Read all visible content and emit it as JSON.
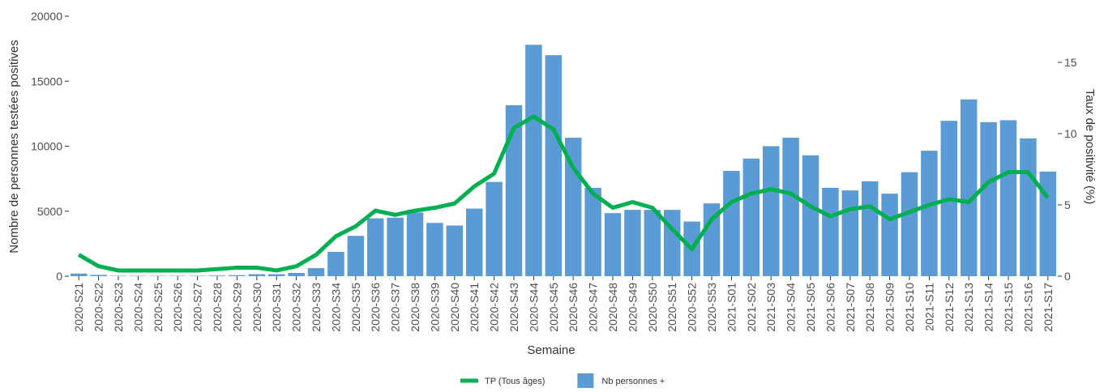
{
  "chart_data": {
    "type": "bar",
    "xlabel": "Semaine",
    "ylabel": "Nombre de personnes testées positives",
    "y2label": "Taux de positivité (%)",
    "categories": [
      "2020-S21",
      "2020-S22",
      "2020-S23",
      "2020-S24",
      "2020-S25",
      "2020-S26",
      "2020-S27",
      "2020-S28",
      "2020-S29",
      "2020-S30",
      "2020-S31",
      "2020-S32",
      "2020-S33",
      "2020-S34",
      "2020-S35",
      "2020-S36",
      "2020-S37",
      "2020-S38",
      "2020-S39",
      "2020-S40",
      "2020-S41",
      "2020-S42",
      "2020-S43",
      "2020-S44",
      "2020-S45",
      "2020-S46",
      "2020-S47",
      "2020-S48",
      "2020-S49",
      "2020-S50",
      "2020-S51",
      "2020-S52",
      "2020-S53",
      "2021-S01",
      "2021-S02",
      "2021-S03",
      "2021-S04",
      "2021-S05",
      "2021-S06",
      "2021-S07",
      "2021-S08",
      "2021-S09",
      "2021-S10",
      "2021-S11",
      "2021-S12",
      "2021-S13",
      "2021-S14",
      "2021-S15",
      "2021-S16",
      "2021-S17"
    ],
    "series": [
      {
        "name": "TP (Tous âges)",
        "type": "line",
        "axis": "y2",
        "color": "#00b050",
        "values": [
          1.5,
          0.7,
          0.4,
          0.4,
          0.4,
          0.4,
          0.4,
          0.5,
          0.6,
          0.6,
          0.4,
          0.7,
          1.5,
          2.8,
          3.5,
          4.6,
          4.3,
          4.6,
          4.8,
          5.1,
          6.3,
          7.2,
          10.4,
          11.2,
          10.3,
          7.6,
          5.8,
          4.8,
          5.2,
          4.8,
          3.3,
          1.9,
          4.0,
          5.2,
          5.8,
          6.1,
          5.8,
          4.9,
          4.2,
          4.7,
          4.9,
          4.0,
          4.5,
          5.0,
          5.4,
          5.2,
          6.6,
          7.3,
          7.3,
          5.5
        ]
      },
      {
        "name": "Nb personnes +",
        "type": "bar",
        "color": "#5b9bd5",
        "values": [
          200,
          100,
          30,
          30,
          30,
          30,
          30,
          50,
          80,
          150,
          150,
          250,
          620,
          1870,
          3100,
          4450,
          4500,
          4900,
          4100,
          3900,
          5200,
          7250,
          13150,
          17800,
          17000,
          10650,
          6800,
          4850,
          5100,
          5100,
          5100,
          4200,
          5600,
          8100,
          9050,
          10000,
          10650,
          9300,
          6800,
          6600,
          7300,
          6350,
          8000,
          9650,
          11950,
          13600,
          11850,
          12000,
          10600,
          8050
        ]
      }
    ],
    "ylim": [
      0,
      20000
    ],
    "yticks": [
      0,
      5000,
      10000,
      15000,
      20000
    ],
    "y2lim": [
      0,
      18.24
    ],
    "y2ticks": [
      0,
      5,
      10,
      15
    ],
    "grid": false,
    "legend": "bottom"
  }
}
